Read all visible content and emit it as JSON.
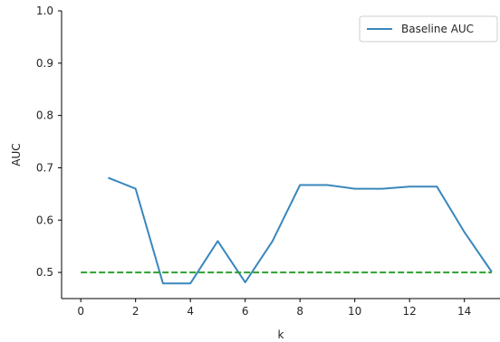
{
  "chart_data": {
    "type": "line",
    "title": "",
    "xlabel": "k",
    "ylabel": "AUC",
    "xlim": [
      -0.7,
      15.3
    ],
    "ylim": [
      0.45,
      1.0
    ],
    "xticks": [
      0,
      2,
      4,
      6,
      8,
      10,
      12,
      14
    ],
    "yticks": [
      0.5,
      0.6,
      0.7,
      0.8,
      0.9,
      1.0
    ],
    "xtick_labels": [
      "0",
      "2",
      "4",
      "6",
      "8",
      "10",
      "12",
      "14"
    ],
    "ytick_labels": [
      "0.5",
      "0.6",
      "0.7",
      "0.8",
      "0.9",
      "1.0"
    ],
    "grid": false,
    "legend_position": "top-right",
    "series": [
      {
        "name": "Baseline AUC",
        "color": "#3a87bd",
        "style": "solid",
        "x": [
          1,
          2,
          3,
          4,
          5,
          6,
          7,
          8,
          9,
          10,
          11,
          12,
          13,
          14,
          15
        ],
        "y": [
          0.681,
          0.66,
          0.479,
          0.479,
          0.56,
          0.481,
          0.56,
          0.667,
          0.667,
          0.66,
          0.66,
          0.664,
          0.664,
          0.577,
          0.501
        ]
      },
      {
        "color": "#2ca02c",
        "style": "dashed",
        "x": [
          0,
          15
        ],
        "y": [
          0.5,
          0.5
        ]
      }
    ]
  }
}
